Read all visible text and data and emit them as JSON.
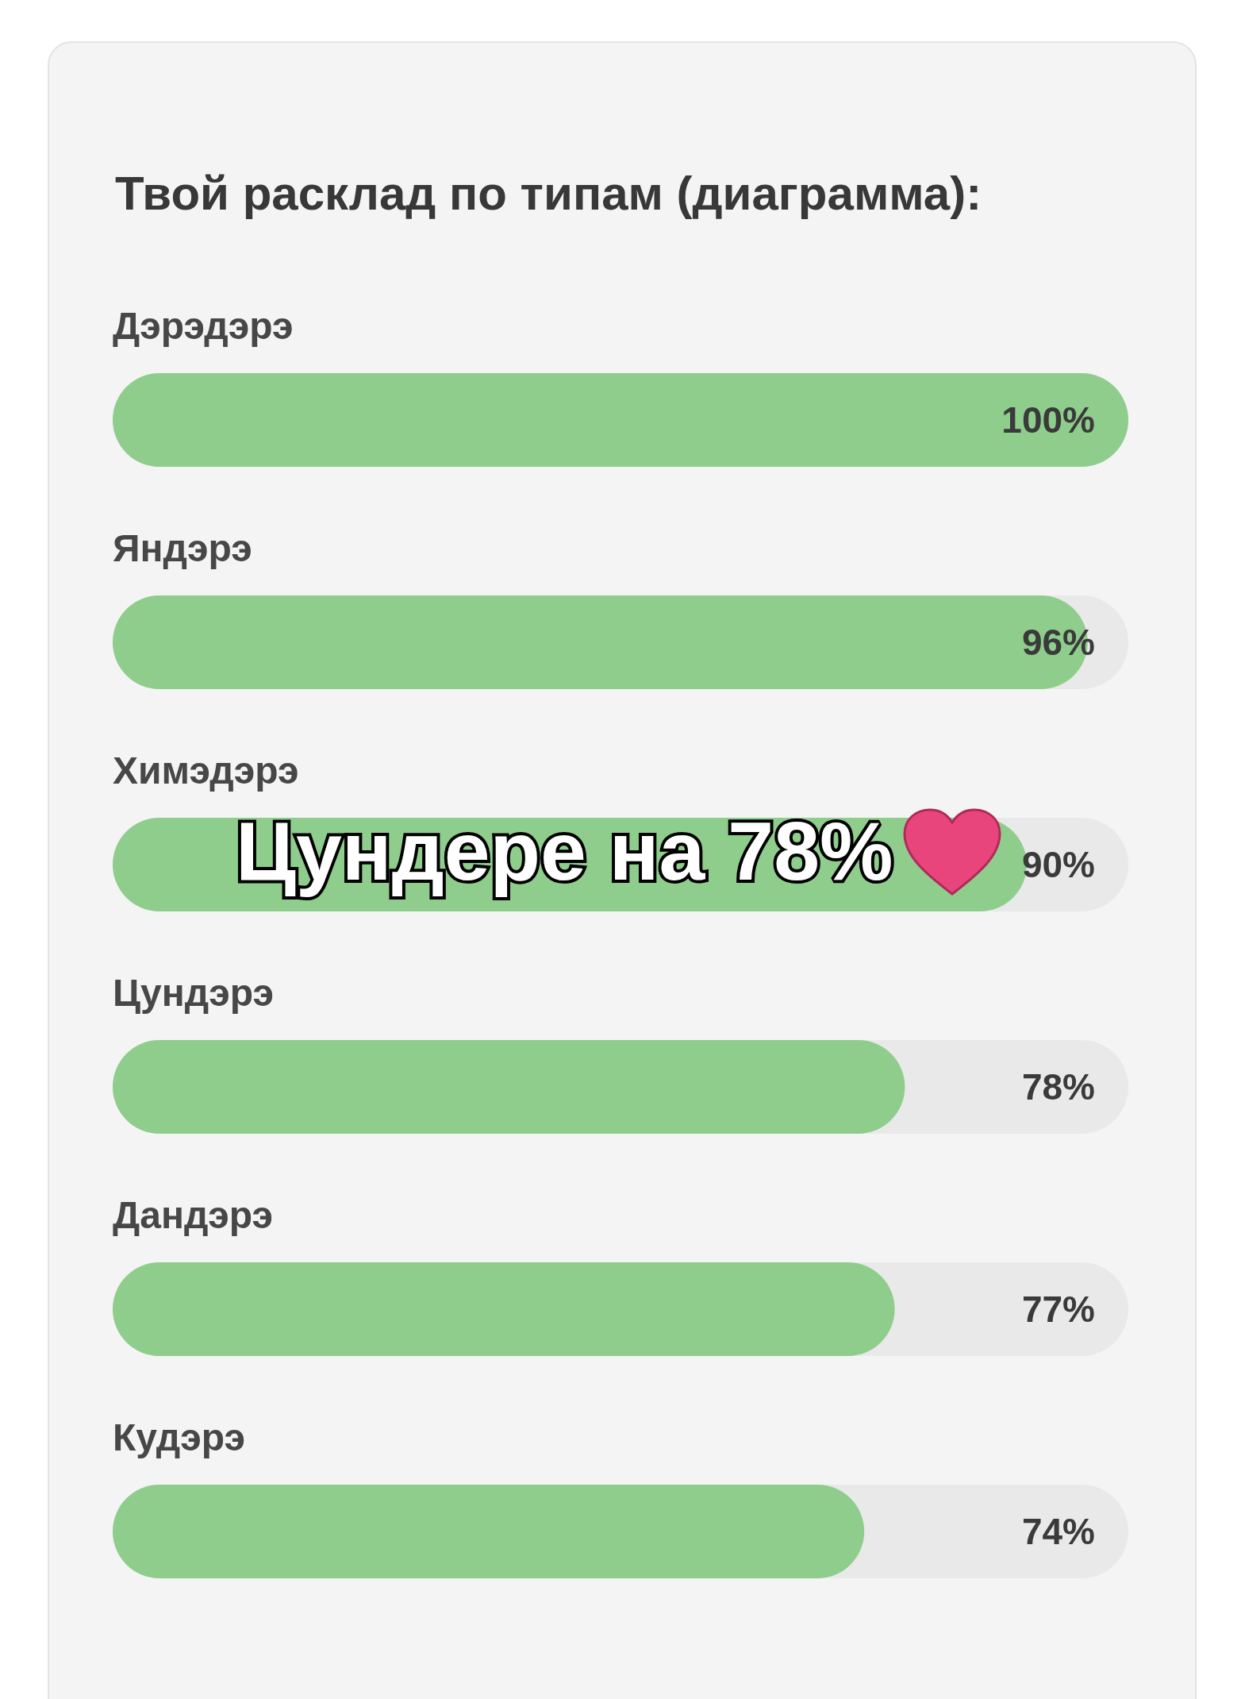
{
  "chart_data": {
    "type": "bar",
    "orientation": "horizontal",
    "title": "Твой расклад по типам (диаграмма):",
    "categories": [
      "Дэрэдэрэ",
      "Яндэрэ",
      "Химэдэрэ",
      "Цундэрэ",
      "Дандэрэ",
      "Кудэрэ"
    ],
    "values": [
      100,
      96,
      90,
      78,
      77,
      74
    ],
    "value_labels": [
      "100%",
      "96%",
      "90%",
      "78%",
      "77%",
      "74%"
    ],
    "color": "#8fcd8d",
    "xlim": [
      0,
      100
    ],
    "tick_labels": "y",
    "annotations": [
      "Цундере на 78%"
    ]
  }
}
